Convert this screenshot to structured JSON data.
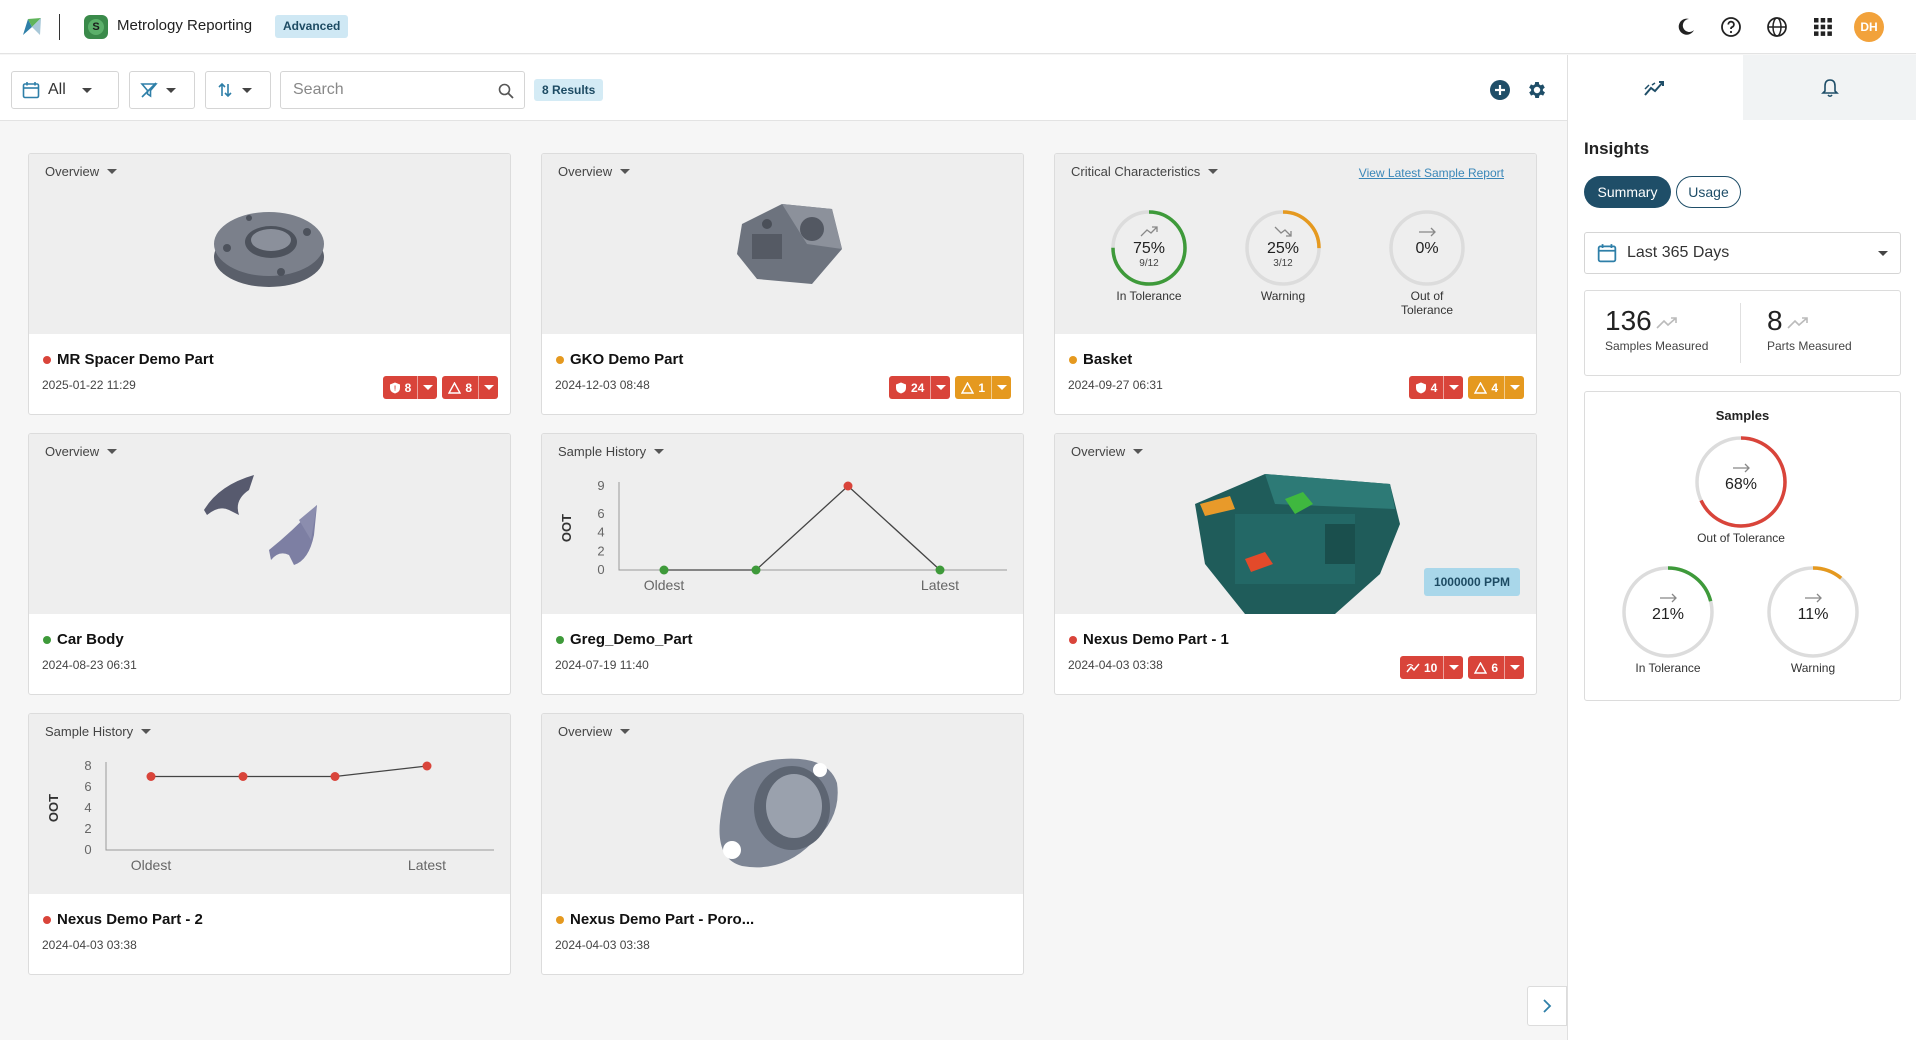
{
  "app": {
    "title": "Metrology Reporting",
    "tier_badge": "Advanced",
    "user_initials": "DH"
  },
  "toolbar": {
    "date_filter": "All",
    "search_placeholder": "Search",
    "results": "8 Results"
  },
  "cards": [
    {
      "view": "Overview",
      "name": "MR Spacer Demo Part",
      "date": "2025-01-22 11:29",
      "status": "red",
      "badges": [
        {
          "icon": "shield-icon",
          "count": "8",
          "color": "red"
        },
        {
          "icon": "warning-icon",
          "count": "8",
          "color": "red"
        }
      ]
    },
    {
      "view": "Overview",
      "name": "GKO Demo Part",
      "date": "2024-12-03 08:48",
      "status": "orange",
      "badges": [
        {
          "icon": "shield-icon",
          "count": "24",
          "color": "red"
        },
        {
          "icon": "warning-icon",
          "count": "1",
          "color": "orange"
        }
      ]
    },
    {
      "view": "Critical Characteristics",
      "link": "View Latest Sample Report",
      "name": "Basket",
      "date": "2024-09-27 06:31",
      "status": "orange",
      "gauges": [
        {
          "value": "75%",
          "fraction": "9/12",
          "label": "In Tolerance",
          "level": 0.75,
          "color": "#3e9a3a",
          "trend": "up"
        },
        {
          "value": "25%",
          "fraction": "3/12",
          "label": "Warning",
          "level": 0.25,
          "color": "#e5991f",
          "trend": "down"
        },
        {
          "value": "0%",
          "fraction": "",
          "label": "Out of Tolerance",
          "level": 0,
          "color": "#d9443a",
          "trend": "flat"
        }
      ],
      "badges": [
        {
          "icon": "shield-icon",
          "count": "4",
          "color": "red"
        },
        {
          "icon": "warning-icon",
          "count": "4",
          "color": "orange"
        }
      ]
    },
    {
      "view": "Overview",
      "name": "Car Body",
      "date": "2024-08-23 06:31",
      "status": "green",
      "badges": []
    },
    {
      "view": "Sample History",
      "name": "Greg_Demo_Part",
      "date": "2024-07-19 11:40",
      "status": "green",
      "badges": []
    },
    {
      "view": "Overview",
      "name": "Nexus Demo Part - 1",
      "date": "2024-04-03 03:38",
      "status": "red",
      "ppm": "1000000 PPM",
      "badges": [
        {
          "icon": "trend-icon",
          "count": "10",
          "color": "red"
        },
        {
          "icon": "warning-icon",
          "count": "6",
          "color": "red"
        }
      ]
    },
    {
      "view": "Sample History",
      "name": "Nexus Demo Part - 2",
      "date": "2024-04-03 03:38",
      "status": "red",
      "badges": []
    },
    {
      "view": "Overview",
      "name": "Nexus Demo Part - Poro...",
      "date": "2024-04-03 03:38",
      "status": "orange",
      "badges": []
    }
  ],
  "chart_data": [
    {
      "type": "line",
      "title": "",
      "ylabel": "OOT",
      "x_tick_labels": [
        "Oldest",
        "Latest"
      ],
      "yticks": [
        0,
        2,
        4,
        6,
        9
      ],
      "ylim": [
        0,
        9
      ],
      "values": [
        0,
        0,
        9,
        0
      ],
      "point_colors": [
        "green",
        "green",
        "red",
        "green"
      ]
    },
    {
      "type": "line",
      "title": "",
      "ylabel": "OOT",
      "x_tick_labels": [
        "Oldest",
        "Latest"
      ],
      "yticks": [
        0,
        2,
        4,
        6,
        8
      ],
      "ylim": [
        0,
        8
      ],
      "values": [
        7,
        7,
        7,
        8
      ],
      "point_colors": [
        "red",
        "red",
        "red",
        "red"
      ]
    }
  ],
  "insights": {
    "title": "Insights",
    "tabs": [
      "Summary",
      "Usage"
    ],
    "date_range": "Last 365 Days",
    "samples_measured": {
      "value": "136",
      "label": "Samples Measured"
    },
    "parts_measured": {
      "value": "8",
      "label": "Parts Measured"
    },
    "samples": {
      "title": "Samples",
      "gauges": [
        {
          "value": "68%",
          "label": "Out of Tolerance",
          "level": 0.68,
          "color": "#d9443a"
        },
        {
          "value": "21%",
          "label": "In Tolerance",
          "level": 0.21,
          "color": "#3e9a3a"
        },
        {
          "value": "11%",
          "label": "Warning",
          "level": 0.11,
          "color": "#e5991f"
        }
      ]
    }
  },
  "colors": {
    "red": "#d9443a",
    "orange": "#e5991f",
    "green": "#3e9a3a",
    "accent": "#1f4e68"
  }
}
